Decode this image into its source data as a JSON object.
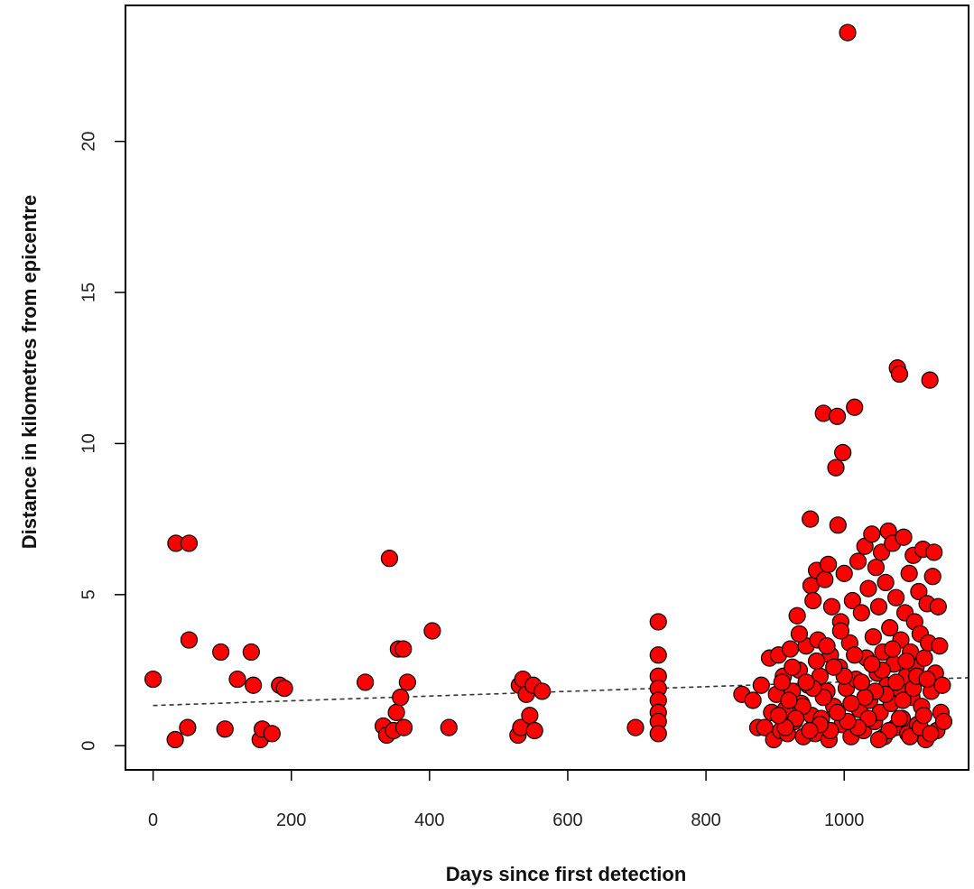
{
  "chart_data": {
    "type": "scatter",
    "title": "",
    "xlabel": "Days since first detection",
    "ylabel": "Distance in kilometres from epicentre",
    "xlim": [
      -40,
      1180
    ],
    "ylim": [
      -0.8,
      24.5
    ],
    "x_ticks": [
      0,
      200,
      400,
      600,
      800,
      1000
    ],
    "y_ticks": [
      0,
      5,
      10,
      15,
      20
    ],
    "grid": false,
    "legend": "none",
    "marker_color": "#ff0000",
    "marker_edge_color": "#000000",
    "trend_line": {
      "style": "dashed",
      "x": [
        0,
        1180
      ],
      "y": [
        1.33,
        2.25
      ]
    },
    "points": [
      [
        0,
        2.2
      ],
      [
        32,
        0.2
      ],
      [
        33,
        6.7
      ],
      [
        52,
        6.7
      ],
      [
        52,
        3.5
      ],
      [
        50,
        0.6
      ],
      [
        98,
        3.1
      ],
      [
        104,
        0.55
      ],
      [
        122,
        2.2
      ],
      [
        142,
        3.1
      ],
      [
        145,
        2.0
      ],
      [
        155,
        0.2
      ],
      [
        158,
        0.55
      ],
      [
        172,
        0.4
      ],
      [
        183,
        2.0
      ],
      [
        190,
        1.9
      ],
      [
        307,
        2.1
      ],
      [
        333,
        0.65
      ],
      [
        338,
        0.35
      ],
      [
        342,
        6.2
      ],
      [
        348,
        0.5
      ],
      [
        352,
        1.1
      ],
      [
        355,
        3.2
      ],
      [
        358,
        1.6
      ],
      [
        362,
        3.2
      ],
      [
        363,
        0.6
      ],
      [
        368,
        2.1
      ],
      [
        404,
        3.8
      ],
      [
        428,
        0.6
      ],
      [
        528,
        0.35
      ],
      [
        530,
        2.0
      ],
      [
        532,
        0.6
      ],
      [
        535,
        2.2
      ],
      [
        540,
        1.7
      ],
      [
        545,
        1.0
      ],
      [
        550,
        2.0
      ],
      [
        552,
        0.5
      ],
      [
        563,
        1.8
      ],
      [
        698,
        0.6
      ],
      [
        731,
        4.1
      ],
      [
        731,
        3.0
      ],
      [
        731,
        2.3
      ],
      [
        731,
        1.9
      ],
      [
        731,
        1.5
      ],
      [
        731,
        1.1
      ],
      [
        731,
        0.8
      ],
      [
        731,
        0.4
      ],
      [
        852,
        1.7
      ],
      [
        868,
        1.5
      ],
      [
        875,
        0.6
      ],
      [
        880,
        2.0
      ],
      [
        885,
        0.6
      ],
      [
        892,
        2.9
      ],
      [
        895,
        1.1
      ],
      [
        898,
        0.2
      ],
      [
        902,
        1.7
      ],
      [
        905,
        3.0
      ],
      [
        908,
        0.5
      ],
      [
        912,
        2.3
      ],
      [
        915,
        1.2
      ],
      [
        918,
        0.4
      ],
      [
        922,
        3.2
      ],
      [
        925,
        1.8
      ],
      [
        928,
        0.8
      ],
      [
        932,
        4.3
      ],
      [
        935,
        2.5
      ],
      [
        938,
        1.4
      ],
      [
        941,
        0.3
      ],
      [
        945,
        3.3
      ],
      [
        948,
        2.0
      ],
      [
        951,
        7.5
      ],
      [
        952,
        5.3
      ],
      [
        953,
        1.0
      ],
      [
        955,
        4.8
      ],
      [
        958,
        0.4
      ],
      [
        960,
        5.8
      ],
      [
        962,
        3.5
      ],
      [
        965,
        2.3
      ],
      [
        967,
        0.9
      ],
      [
        970,
        11.0
      ],
      [
        972,
        5.5
      ],
      [
        975,
        1.8
      ],
      [
        977,
        6.0
      ],
      [
        978,
        0.2
      ],
      [
        980,
        3.0
      ],
      [
        982,
        4.6
      ],
      [
        985,
        1.3
      ],
      [
        988,
        9.2
      ],
      [
        990,
        10.9
      ],
      [
        991,
        7.3
      ],
      [
        993,
        2.6
      ],
      [
        995,
        4.1
      ],
      [
        997,
        0.7
      ],
      [
        998,
        9.7
      ],
      [
        1000,
        5.7
      ],
      [
        1003,
        1.9
      ],
      [
        1005,
        23.6
      ],
      [
        1008,
        3.4
      ],
      [
        1010,
        0.3
      ],
      [
        1012,
        4.8
      ],
      [
        1015,
        11.2
      ],
      [
        1017,
        2.2
      ],
      [
        1020,
        6.1
      ],
      [
        1022,
        1.2
      ],
      [
        1025,
        4.4
      ],
      [
        1028,
        0.5
      ],
      [
        1030,
        6.6
      ],
      [
        1032,
        2.9
      ],
      [
        1035,
        5.2
      ],
      [
        1037,
        1.5
      ],
      [
        1040,
        7.0
      ],
      [
        1042,
        3.6
      ],
      [
        1044,
        0.8
      ],
      [
        1046,
        5.9
      ],
      [
        1048,
        2.4
      ],
      [
        1050,
        4.6
      ],
      [
        1052,
        1.1
      ],
      [
        1054,
        6.4
      ],
      [
        1056,
        3.1
      ],
      [
        1058,
        0.3
      ],
      [
        1060,
        5.4
      ],
      [
        1062,
        2.0
      ],
      [
        1064,
        7.1
      ],
      [
        1066,
        3.9
      ],
      [
        1068,
        1.4
      ],
      [
        1070,
        6.7
      ],
      [
        1072,
        2.7
      ],
      [
        1074,
        0.6
      ],
      [
        1075,
        4.9
      ],
      [
        1077,
        12.5
      ],
      [
        1078,
        1.9
      ],
      [
        1080,
        12.3
      ],
      [
        1082,
        3.5
      ],
      [
        1084,
        0.9
      ],
      [
        1086,
        6.9
      ],
      [
        1088,
        4.4
      ],
      [
        1090,
        2.3
      ],
      [
        1092,
        0.4
      ],
      [
        1094,
        5.7
      ],
      [
        1096,
        3.1
      ],
      [
        1098,
        1.6
      ],
      [
        1100,
        6.3
      ],
      [
        1102,
        4.1
      ],
      [
        1104,
        2.6
      ],
      [
        1106,
        0.7
      ],
      [
        1108,
        5.1
      ],
      [
        1110,
        3.7
      ],
      [
        1112,
        1.3
      ],
      [
        1114,
        6.5
      ],
      [
        1116,
        2.9
      ],
      [
        1118,
        0.2
      ],
      [
        1120,
        4.7
      ],
      [
        1122,
        3.4
      ],
      [
        1124,
        12.1
      ],
      [
        1126,
        1.8
      ],
      [
        1128,
        5.6
      ],
      [
        1130,
        6.4
      ],
      [
        1132,
        2.4
      ],
      [
        1134,
        0.5
      ],
      [
        1136,
        4.6
      ],
      [
        1138,
        3.3
      ],
      [
        1140,
        1.1
      ],
      [
        1142,
        2.0
      ],
      [
        1144,
        0.8
      ],
      [
        1055,
        2.5
      ],
      [
        1060,
        1.7
      ],
      [
        1065,
        0.5
      ],
      [
        1070,
        3.2
      ],
      [
        1075,
        2.1
      ],
      [
        1080,
        0.9
      ],
      [
        1085,
        1.5
      ],
      [
        1090,
        2.8
      ],
      [
        1095,
        0.3
      ],
      [
        1100,
        1.9
      ],
      [
        1105,
        2.3
      ],
      [
        1110,
        0.6
      ],
      [
        1115,
        1.0
      ],
      [
        1120,
        2.2
      ],
      [
        1125,
        0.4
      ],
      [
        1050,
        0.2
      ],
      [
        1045,
        1.8
      ],
      [
        1040,
        2.7
      ],
      [
        1035,
        0.9
      ],
      [
        1030,
        1.6
      ],
      [
        1025,
        2.1
      ],
      [
        1020,
        0.6
      ],
      [
        1015,
        3.0
      ],
      [
        1010,
        1.4
      ],
      [
        1005,
        0.8
      ],
      [
        1000,
        2.3
      ],
      [
        995,
        3.8
      ],
      [
        990,
        1.1
      ],
      [
        985,
        2.6
      ],
      [
        980,
        0.5
      ],
      [
        975,
        3.3
      ],
      [
        970,
        1.6
      ],
      [
        965,
        0.7
      ],
      [
        960,
        2.8
      ],
      [
        955,
        1.9
      ],
      [
        950,
        0.5
      ],
      [
        945,
        2.1
      ],
      [
        940,
        1.3
      ],
      [
        935,
        3.7
      ],
      [
        930,
        0.9
      ],
      [
        925,
        2.6
      ],
      [
        920,
        1.5
      ],
      [
        915,
        0.6
      ],
      [
        910,
        2.1
      ],
      [
        905,
        1.0
      ]
    ]
  }
}
